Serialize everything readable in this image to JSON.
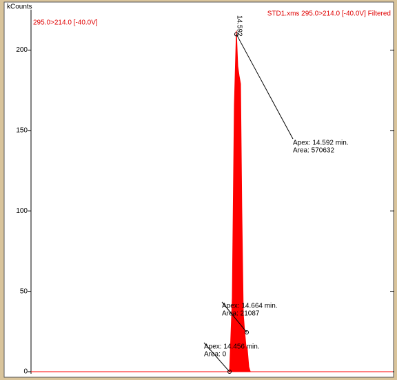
{
  "chart_data": {
    "type": "area",
    "y_label": "kCounts",
    "trace_label": "295.0>214.0 [-40.0V]",
    "title": "STD1.xms 295.0>214.0 [-40.0V] Filtered",
    "peak_label": "14.592",
    "x": [
      10.5,
      14.456,
      14.51,
      14.551,
      14.592,
      14.62,
      14.647,
      14.675,
      14.7,
      14.73,
      14.757,
      14.784,
      14.81,
      14.84,
      14.87,
      17.71
    ],
    "series": [
      {
        "name": "295.0>214.0",
        "color": "#ff0000",
        "values": [
          0,
          0,
          46,
          166,
          212,
          190,
          184,
          179,
          102,
          36,
          25,
          16,
          14,
          3,
          0,
          0
        ]
      }
    ],
    "xlim": [
      10.5,
      17.71
    ],
    "ylim": [
      0,
      229
    ],
    "yticks": [
      0,
      50,
      100,
      150,
      200
    ],
    "grid": false,
    "annotations": [
      {
        "apex": "Apex: 14.592 min.",
        "area": "Area: 570632"
      },
      {
        "apex": "Apex: 14.664 min.",
        "area": "Area: 21087"
      },
      {
        "apex": "Apex: 14.456 min.",
        "area": "Area: 0"
      }
    ]
  }
}
